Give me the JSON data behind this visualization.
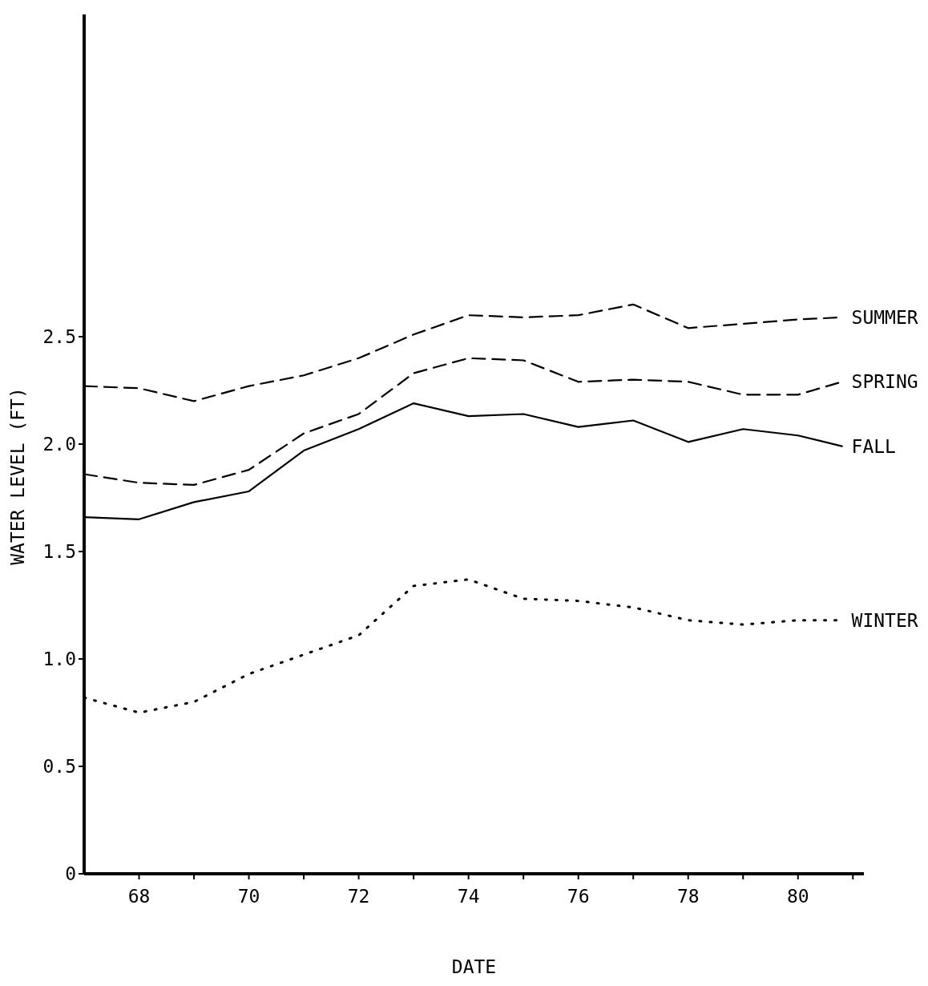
{
  "chart_data": {
    "type": "line",
    "xlabel": "DATE",
    "ylabel": "WATER LEVEL (FT)",
    "x": [
      67,
      68,
      69,
      70,
      71,
      72,
      73,
      74,
      75,
      76,
      77,
      78,
      79,
      80,
      80.8
    ],
    "xlim": [
      67,
      81.2
    ],
    "xticks": [
      68,
      {
        "value": 69,
        "label": null
      },
      70,
      {
        "value": 71,
        "label": null
      },
      72,
      {
        "value": 73,
        "label": null
      },
      74,
      {
        "value": 75,
        "label": null
      },
      76,
      {
        "value": 77,
        "label": null
      },
      78,
      {
        "value": 79,
        "label": null
      },
      80,
      {
        "value": 81,
        "label": null
      }
    ],
    "ylim": [
      0,
      4
    ],
    "yticks": [
      0,
      0.5,
      {
        "value": 1,
        "label": "1.0"
      },
      1.5,
      {
        "value": 2,
        "label": "2.0"
      },
      2.5
    ],
    "grid": false,
    "marker": "none",
    "series": [
      {
        "name": "SUMMER",
        "color": "#000000",
        "line_style": "dashed",
        "values": [
          2.27,
          2.26,
          2.2,
          2.27,
          2.32,
          2.4,
          2.51,
          2.6,
          2.59,
          2.6,
          2.65,
          2.54,
          2.56,
          2.58,
          2.59
        ]
      },
      {
        "name": "SPRING",
        "color": "#000000",
        "line_style": "dashed",
        "values": [
          1.86,
          1.82,
          1.81,
          1.88,
          2.05,
          2.14,
          2.33,
          2.4,
          2.39,
          2.29,
          2.3,
          2.29,
          2.23,
          2.23,
          2.29
        ]
      },
      {
        "name": "FALL",
        "color": "#000000",
        "line_style": "solid",
        "values": [
          1.66,
          1.65,
          1.73,
          1.78,
          1.97,
          2.07,
          2.19,
          2.13,
          2.14,
          2.08,
          2.11,
          2.01,
          2.07,
          2.04,
          1.99
        ]
      },
      {
        "name": "WINTER",
        "color": "#000000",
        "line_style": "dotted",
        "values": [
          0.82,
          0.75,
          0.8,
          0.93,
          1.02,
          1.11,
          1.34,
          1.37,
          1.28,
          1.27,
          1.24,
          1.18,
          1.16,
          1.18,
          1.18
        ]
      }
    ]
  }
}
